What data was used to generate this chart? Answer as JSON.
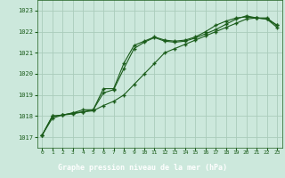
{
  "title": "Graphe pression niveau de la mer (hPa)",
  "background_color": "#cce8dc",
  "grid_color": "#aaccbb",
  "line_color": "#1a5c1a",
  "xlabel_bg": "#2a6e2a",
  "xlabel_fg": "#ffffff",
  "xlim": [
    -0.5,
    23.5
  ],
  "ylim": [
    1016.5,
    1023.5
  ],
  "yticks": [
    1017,
    1018,
    1019,
    1020,
    1021,
    1022,
    1023
  ],
  "xticks": [
    0,
    1,
    2,
    3,
    4,
    5,
    6,
    7,
    8,
    9,
    10,
    11,
    12,
    13,
    14,
    15,
    16,
    17,
    18,
    19,
    20,
    21,
    22,
    23
  ],
  "series1": [
    1017.1,
    1017.9,
    1018.05,
    1018.15,
    1018.2,
    1018.3,
    1019.3,
    1019.3,
    1020.5,
    1021.35,
    1021.55,
    1021.75,
    1021.6,
    1021.55,
    1021.6,
    1021.75,
    1022.0,
    1022.3,
    1022.5,
    1022.65,
    1022.7,
    1022.65,
    1022.6,
    1022.3
  ],
  "series2": [
    1017.1,
    1018.0,
    1018.05,
    1018.15,
    1018.3,
    1018.3,
    1019.1,
    1019.25,
    1020.25,
    1021.2,
    1021.5,
    1021.72,
    1021.55,
    1021.5,
    1021.55,
    1021.7,
    1021.9,
    1022.1,
    1022.35,
    1022.6,
    1022.75,
    1022.65,
    1022.6,
    1022.2
  ],
  "series3": [
    1017.1,
    1018.0,
    1018.05,
    1018.1,
    1018.2,
    1018.25,
    1018.5,
    1018.7,
    1019.0,
    1019.5,
    1020.0,
    1020.5,
    1021.0,
    1021.2,
    1021.4,
    1021.6,
    1021.8,
    1022.0,
    1022.2,
    1022.4,
    1022.6,
    1022.65,
    1022.65,
    1022.3
  ]
}
